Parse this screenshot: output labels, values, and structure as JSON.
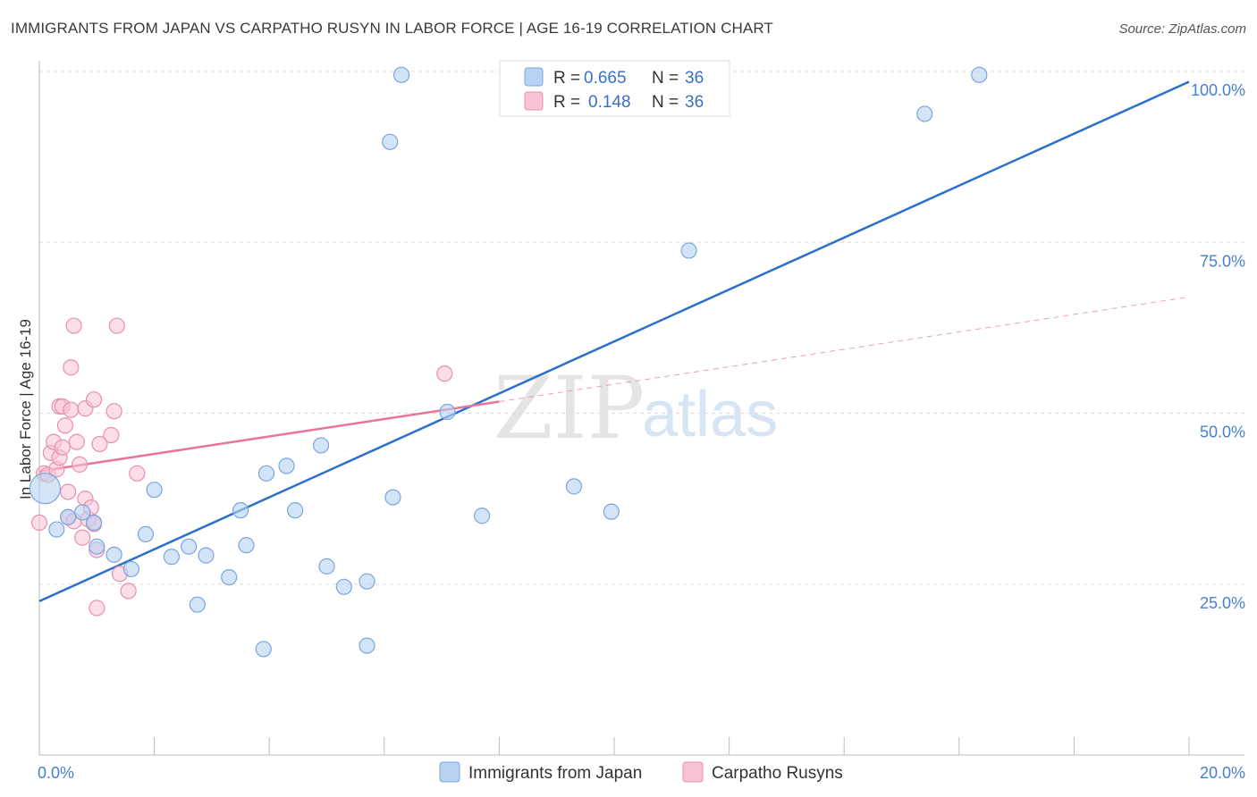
{
  "header": {
    "title": "IMMIGRANTS FROM JAPAN VS CARPATHO RUSYN IN LABOR FORCE | AGE 16-19 CORRELATION CHART",
    "source": "Source: ZipAtlas.com"
  },
  "watermark": {
    "zip": "ZIP",
    "atlas": "atlas"
  },
  "legend": {
    "series": [
      {
        "r_label": "R =",
        "r_value": "0.665",
        "n_label": "N =",
        "n_value": "36"
      },
      {
        "r_label": "R =",
        "r_value": "0.148",
        "n_label": "N =",
        "n_value": "36"
      }
    ]
  },
  "bottom_legend": [
    "Immigrants from Japan",
    "Carpatho Rusyns"
  ],
  "colors": {
    "japan_fill": "#b7d2f2",
    "japan_stroke": "#7aa6de",
    "japan_line": "#2a6fcc",
    "rusyn_fill": "#f8c3d4",
    "rusyn_stroke": "#e98fae",
    "rusyn_line": "#e8749c",
    "axis_label": "#4a7fd0",
    "grid": "#dcdcdc"
  },
  "chart_data": {
    "type": "scatter",
    "title": "IMMIGRANTS FROM JAPAN VS CARPATHO RUSYN IN LABOR FORCE | AGE 16-19 CORRELATION CHART",
    "xlabel": "",
    "ylabel": "In Labor Force | Age 16-19",
    "xlim": [
      0,
      20
    ],
    "ylim": [
      0,
      105
    ],
    "x_tick_labels": [
      {
        "value": 0,
        "label": "0.0%"
      },
      {
        "value": 20,
        "label": "20.0%"
      }
    ],
    "y_tick_labels": [
      {
        "value": 25,
        "label": "25.0%"
      },
      {
        "value": 50,
        "label": "50.0%"
      },
      {
        "value": 75,
        "label": "75.0%"
      },
      {
        "value": 100,
        "label": "100.0%"
      }
    ],
    "series": [
      {
        "name": "Immigrants from Japan",
        "r": 0.665,
        "n": 36,
        "trend": {
          "x0": 0,
          "y0": 22.5,
          "x1": 20,
          "y1": 98.5,
          "dashed_from": null
        },
        "points": [
          {
            "x": 0.1,
            "y": 39.0,
            "big": true
          },
          {
            "x": 0.3,
            "y": 33.0,
            "big": false
          },
          {
            "x": 0.5,
            "y": 34.8,
            "big": false
          },
          {
            "x": 0.75,
            "y": 35.5,
            "big": false
          },
          {
            "x": 0.95,
            "y": 34.0,
            "big": false
          },
          {
            "x": 1.0,
            "y": 30.5,
            "big": false
          },
          {
            "x": 1.3,
            "y": 29.3,
            "big": false
          },
          {
            "x": 1.6,
            "y": 27.2,
            "big": false
          },
          {
            "x": 1.85,
            "y": 32.3,
            "big": false
          },
          {
            "x": 2.0,
            "y": 38.8,
            "big": false
          },
          {
            "x": 2.3,
            "y": 29.0,
            "big": false
          },
          {
            "x": 2.6,
            "y": 30.5,
            "big": false
          },
          {
            "x": 2.75,
            "y": 22.0,
            "big": false
          },
          {
            "x": 2.9,
            "y": 29.2,
            "big": false
          },
          {
            "x": 3.3,
            "y": 26.0,
            "big": false
          },
          {
            "x": 3.5,
            "y": 35.8,
            "big": false
          },
          {
            "x": 3.6,
            "y": 30.7,
            "big": false
          },
          {
            "x": 3.9,
            "y": 15.5,
            "big": false
          },
          {
            "x": 3.95,
            "y": 41.2,
            "big": false
          },
          {
            "x": 4.3,
            "y": 42.3,
            "big": false
          },
          {
            "x": 4.45,
            "y": 35.8,
            "big": false
          },
          {
            "x": 4.9,
            "y": 45.3,
            "big": false
          },
          {
            "x": 5.0,
            "y": 27.6,
            "big": false
          },
          {
            "x": 5.3,
            "y": 24.6,
            "big": false
          },
          {
            "x": 5.7,
            "y": 25.4,
            "big": false
          },
          {
            "x": 5.7,
            "y": 16.0,
            "big": false
          },
          {
            "x": 6.15,
            "y": 37.7,
            "big": false
          },
          {
            "x": 6.1,
            "y": 89.7,
            "big": false
          },
          {
            "x": 6.3,
            "y": 99.5,
            "big": false
          },
          {
            "x": 7.1,
            "y": 50.2,
            "big": false
          },
          {
            "x": 7.7,
            "y": 35.0,
            "big": false
          },
          {
            "x": 9.3,
            "y": 39.3,
            "big": false
          },
          {
            "x": 9.95,
            "y": 35.6,
            "big": false
          },
          {
            "x": 11.3,
            "y": 73.8,
            "big": false
          },
          {
            "x": 15.4,
            "y": 93.8,
            "big": false
          },
          {
            "x": 16.35,
            "y": 99.5,
            "big": false
          }
        ]
      },
      {
        "name": "Carpatho Rusyns",
        "r": 0.148,
        "n": 36,
        "trend": {
          "x0": 0,
          "y0": 41.5,
          "x1": 20,
          "y1": 67.0,
          "dashed_from": 8.0
        },
        "points": [
          {
            "x": 0.0,
            "y": 34.0,
            "big": false
          },
          {
            "x": 0.08,
            "y": 41.2,
            "big": false
          },
          {
            "x": 0.15,
            "y": 41.0,
            "big": false
          },
          {
            "x": 0.2,
            "y": 44.2,
            "big": false
          },
          {
            "x": 0.25,
            "y": 45.8,
            "big": false
          },
          {
            "x": 0.3,
            "y": 41.8,
            "big": false
          },
          {
            "x": 0.35,
            "y": 43.5,
            "big": false
          },
          {
            "x": 0.35,
            "y": 51.0,
            "big": false
          },
          {
            "x": 0.4,
            "y": 45.0,
            "big": false
          },
          {
            "x": 0.4,
            "y": 51.0,
            "big": false
          },
          {
            "x": 0.45,
            "y": 48.2,
            "big": false
          },
          {
            "x": 0.5,
            "y": 34.8,
            "big": false
          },
          {
            "x": 0.5,
            "y": 38.5,
            "big": false
          },
          {
            "x": 0.55,
            "y": 50.5,
            "big": false
          },
          {
            "x": 0.6,
            "y": 34.2,
            "big": false
          },
          {
            "x": 0.55,
            "y": 56.7,
            "big": false
          },
          {
            "x": 0.6,
            "y": 62.8,
            "big": false
          },
          {
            "x": 0.65,
            "y": 45.8,
            "big": false
          },
          {
            "x": 0.7,
            "y": 42.5,
            "big": false
          },
          {
            "x": 0.75,
            "y": 31.8,
            "big": false
          },
          {
            "x": 0.8,
            "y": 50.7,
            "big": false
          },
          {
            "x": 0.85,
            "y": 34.5,
            "big": false
          },
          {
            "x": 0.8,
            "y": 37.5,
            "big": false
          },
          {
            "x": 0.9,
            "y": 36.2,
            "big": false
          },
          {
            "x": 0.95,
            "y": 33.8,
            "big": false
          },
          {
            "x": 0.95,
            "y": 52.0,
            "big": false
          },
          {
            "x": 1.0,
            "y": 30.0,
            "big": false
          },
          {
            "x": 1.0,
            "y": 21.5,
            "big": false
          },
          {
            "x": 1.05,
            "y": 45.5,
            "big": false
          },
          {
            "x": 1.25,
            "y": 46.8,
            "big": false
          },
          {
            "x": 1.3,
            "y": 50.3,
            "big": false
          },
          {
            "x": 1.35,
            "y": 62.8,
            "big": false
          },
          {
            "x": 1.4,
            "y": 26.5,
            "big": false
          },
          {
            "x": 1.55,
            "y": 24.0,
            "big": false
          },
          {
            "x": 1.7,
            "y": 41.2,
            "big": false
          },
          {
            "x": 7.05,
            "y": 55.8,
            "big": false
          }
        ]
      }
    ]
  }
}
